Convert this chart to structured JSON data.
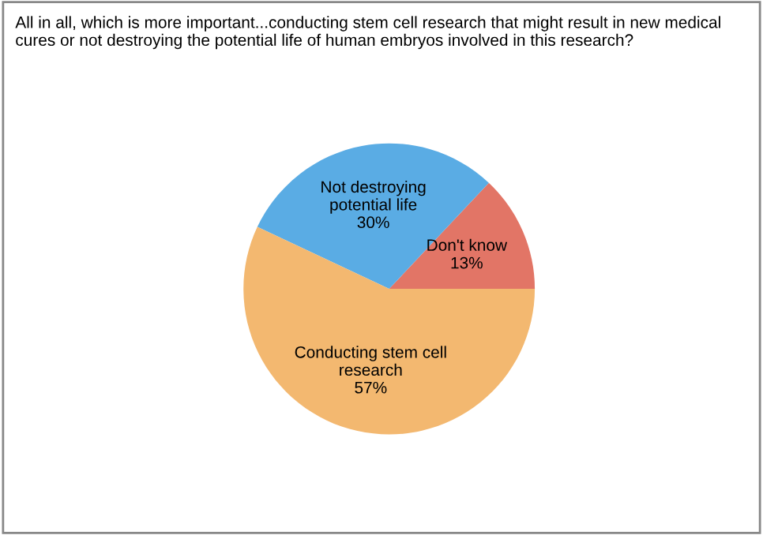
{
  "chart_data": {
    "type": "pie",
    "title": "All in all, which is more important...conducting stem cell research that might result in new medical cures or not destroying the potential life of human embryos involved in this research?",
    "categories": [
      "Don't know",
      "Not destroying potential life",
      "Conducting stem cell research"
    ],
    "values": [
      13,
      30,
      57
    ],
    "colors": [
      "#e27566",
      "#5aace4",
      "#f3b870"
    ],
    "value_labels": [
      "13%",
      "30%",
      "57%"
    ],
    "legend": false
  }
}
